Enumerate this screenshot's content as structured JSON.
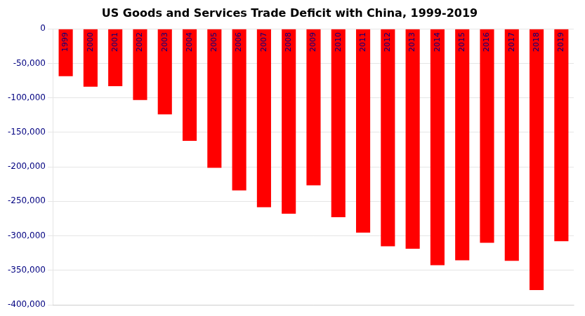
{
  "chart_data": {
    "type": "bar",
    "title": "US Goods and Services Trade Deficit with China, 1999-2019",
    "categories": [
      "1999",
      "2000",
      "2001",
      "2002",
      "2003",
      "2004",
      "2005",
      "2006",
      "2007",
      "2008",
      "2009",
      "2010",
      "2011",
      "2012",
      "2013",
      "2014",
      "2015",
      "2016",
      "2017",
      "2018",
      "2019"
    ],
    "values": [
      -68677,
      -83833,
      -83096,
      -103065,
      -124068,
      -162254,
      -201549,
      -234101,
      -258506,
      -268040,
      -226877,
      -273042,
      -295404,
      -315108,
      -318682,
      -342633,
      -335418,
      -309980,
      -336187,
      -378614,
      -307808
    ],
    "color": "#ff0000",
    "ylim": [
      -400000,
      0
    ],
    "yticks": [
      {
        "value": -400000,
        "label": "-400,000"
      },
      {
        "value": -350000,
        "label": "-350,000"
      },
      {
        "value": -300000,
        "label": "-300,000"
      },
      {
        "value": -250000,
        "label": "-250,000"
      },
      {
        "value": -200000,
        "label": "-200,000"
      },
      {
        "value": -150000,
        "label": "-150,000"
      },
      {
        "value": -100000,
        "label": "-100,000"
      },
      {
        "value": -50000,
        "label": "-50,000"
      },
      0
    ],
    "grid": true,
    "tick_labels": "y"
  }
}
